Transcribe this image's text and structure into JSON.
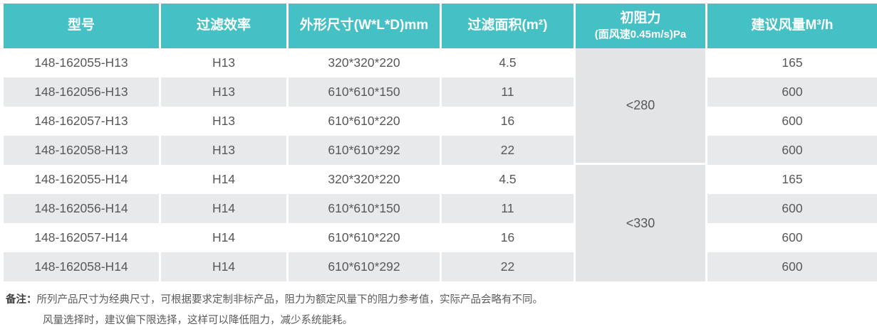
{
  "table": {
    "columns": [
      {
        "label": "型号"
      },
      {
        "label": "过滤效率"
      },
      {
        "label": "外形尺寸(W*L*D)mm"
      },
      {
        "label": "过滤面积(m²)"
      },
      {
        "label_line1": "初阻力",
        "label_line2": "(面风速0.45m/s)Pa"
      },
      {
        "label": "建议风量M³/h"
      }
    ],
    "groups": [
      {
        "resistance": "<280",
        "rows": [
          {
            "model": "148-162055-H13",
            "efficiency": "H13",
            "dimensions": "320*320*220",
            "area": "4.5",
            "airflow": "165"
          },
          {
            "model": "148-162056-H13",
            "efficiency": "H13",
            "dimensions": "610*610*150",
            "area": "11",
            "airflow": "600"
          },
          {
            "model": "148-162057-H13",
            "efficiency": "H13",
            "dimensions": "610*610*220",
            "area": "16",
            "airflow": "600"
          },
          {
            "model": "148-162058-H13",
            "efficiency": "H13",
            "dimensions": "610*610*292",
            "area": "22",
            "airflow": "600"
          }
        ]
      },
      {
        "resistance": "<330",
        "rows": [
          {
            "model": "148-162055-H14",
            "efficiency": "H14",
            "dimensions": "320*320*220",
            "area": "4.5",
            "airflow": "165"
          },
          {
            "model": "148-162056-H14",
            "efficiency": "H14",
            "dimensions": "610*610*150",
            "area": "11",
            "airflow": "600"
          },
          {
            "model": "148-162057-H14",
            "efficiency": "H14",
            "dimensions": "610*610*220",
            "area": "16",
            "airflow": "600"
          },
          {
            "model": "148-162058-H14",
            "efficiency": "H14",
            "dimensions": "610*610*292",
            "area": "22",
            "airflow": "600"
          }
        ]
      }
    ]
  },
  "notes": {
    "label": "备注：",
    "line1": "所列产品尺寸为经典尺寸，可根据要求定制非标产品，阻力为额定风量下的阻力参考值，实际产品会略有不同。",
    "line2": "风量选择时，建议偏下限选择，这样可以降低阻力，减少系统能耗。"
  },
  "colors": {
    "header_bg": "#45c1c5",
    "header_text": "#ffffff",
    "row_alt_bg": "#e8e9eb",
    "merged_cell_bg": "#e3e4e6",
    "body_text": "#57585a"
  }
}
